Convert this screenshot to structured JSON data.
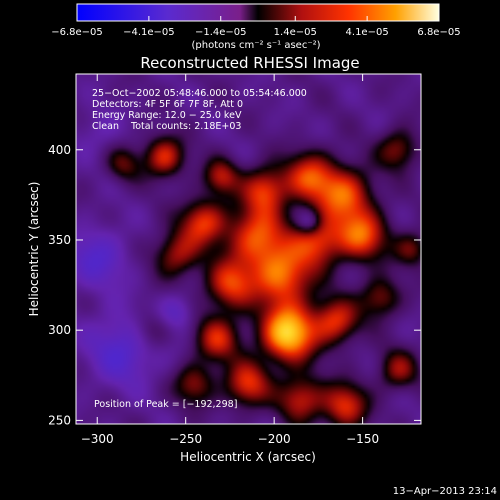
{
  "chart_data": {
    "type": "heatmap",
    "title": "Reconstructed RHESSI Image",
    "xlabel": "Heliocentric X (arcsec)",
    "ylabel": "Heliocentric Y (arcsec)",
    "xlim": [
      -312,
      -117
    ],
    "ylim": [
      248,
      442
    ],
    "x_ticks": [
      {
        "value": -300,
        "label": "−300"
      },
      {
        "value": -250,
        "label": "−250"
      },
      {
        "value": -200,
        "label": "−200"
      },
      {
        "value": -150,
        "label": "−150"
      }
    ],
    "y_ticks": [
      {
        "value": 250,
        "label": "250"
      },
      {
        "value": 300,
        "label": "300"
      },
      {
        "value": 350,
        "label": "350"
      },
      {
        "value": 400,
        "label": "400"
      }
    ],
    "colorbar": {
      "range": [
        -6.8e-05,
        6.8e-05
      ],
      "ticks": [
        {
          "value": -6.8e-05,
          "label": "−6.8e−05"
        },
        {
          "value": -4.1e-05,
          "label": "−4.1e−05"
        },
        {
          "value": -1.4e-05,
          "label": "−1.4e−05"
        },
        {
          "value": 1.4e-05,
          "label": "1.4e−05"
        },
        {
          "value": 4.1e-05,
          "label": "4.1e−05"
        },
        {
          "value": 6.8e-05,
          "label": "6.8e−05"
        }
      ],
      "unit_label": "(photons cm⁻² s⁻¹ asec⁻²)"
    },
    "annotations": [
      "25−Oct−2002 05:48:46.000 to 05:54:46.000",
      "Detectors: 4F 5F 6F 7F 8F, Att 0",
      "Energy Range: 12.0 − 25.0 keV",
      "Clean    Total counts: 2.18E+03",
      "Position of Peak = [−192,298]"
    ],
    "timestamp": "13−Apr−2013 23:14",
    "peak_position": [
      -192,
      298
    ],
    "sources": [
      {
        "x": -262,
        "y": 396,
        "amp": 0.55,
        "s": 8
      },
      {
        "x": -230,
        "y": 385,
        "amp": 0.45,
        "s": 7
      },
      {
        "x": -205,
        "y": 378,
        "amp": 0.55,
        "s": 9
      },
      {
        "x": -180,
        "y": 385,
        "amp": 0.55,
        "s": 10
      },
      {
        "x": -160,
        "y": 375,
        "amp": 0.6,
        "s": 11
      },
      {
        "x": -130,
        "y": 400,
        "amp": 0.4,
        "s": 8
      },
      {
        "x": -240,
        "y": 360,
        "amp": 0.55,
        "s": 9
      },
      {
        "x": -210,
        "y": 352,
        "amp": 0.6,
        "s": 12
      },
      {
        "x": -175,
        "y": 350,
        "amp": 0.55,
        "s": 10
      },
      {
        "x": -150,
        "y": 352,
        "amp": 0.6,
        "s": 10
      },
      {
        "x": -195,
        "y": 330,
        "amp": 0.65,
        "s": 12
      },
      {
        "x": -225,
        "y": 325,
        "amp": 0.55,
        "s": 10
      },
      {
        "x": -255,
        "y": 342,
        "amp": 0.45,
        "s": 9
      },
      {
        "x": -192,
        "y": 298,
        "amp": 0.9,
        "s": 11
      },
      {
        "x": -165,
        "y": 305,
        "amp": 0.55,
        "s": 9
      },
      {
        "x": -140,
        "y": 318,
        "amp": 0.4,
        "s": 8
      },
      {
        "x": -232,
        "y": 295,
        "amp": 0.5,
        "s": 9
      },
      {
        "x": -215,
        "y": 270,
        "amp": 0.55,
        "s": 9
      },
      {
        "x": -185,
        "y": 262,
        "amp": 0.5,
        "s": 9
      },
      {
        "x": -160,
        "y": 258,
        "amp": 0.55,
        "s": 9
      },
      {
        "x": -130,
        "y": 278,
        "amp": 0.4,
        "s": 8
      },
      {
        "x": -245,
        "y": 270,
        "amp": 0.4,
        "s": 8
      },
      {
        "x": -285,
        "y": 392,
        "amp": 0.3,
        "s": 7
      },
      {
        "x": -270,
        "y": 300,
        "amp": 0.25,
        "s": 8
      },
      {
        "x": -122,
        "y": 345,
        "amp": 0.35,
        "s": 7
      },
      {
        "x": -300,
        "y": 340,
        "amp": -0.3,
        "s": 12
      },
      {
        "x": -285,
        "y": 290,
        "amp": -0.35,
        "s": 14
      },
      {
        "x": -300,
        "y": 410,
        "amp": -0.15,
        "s": 9
      },
      {
        "x": -180,
        "y": 360,
        "amp": -0.35,
        "s": 5
      },
      {
        "x": -255,
        "y": 310,
        "amp": -0.25,
        "s": 7
      }
    ]
  }
}
